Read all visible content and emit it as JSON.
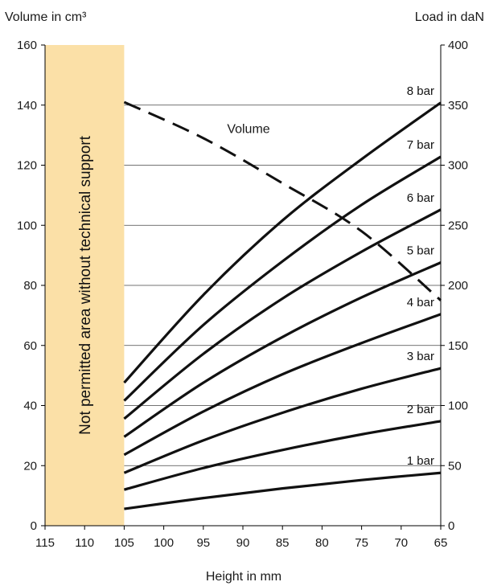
{
  "chart_data": {
    "type": "line",
    "y_left_label": "Volume in cm³",
    "y_right_label": "Load in daN",
    "xlabel": "Height in mm",
    "x_ticks": [
      115,
      110,
      105,
      100,
      95,
      90,
      85,
      80,
      75,
      70,
      65
    ],
    "y_left_ticks": [
      0,
      20,
      40,
      60,
      80,
      100,
      120,
      140,
      160
    ],
    "y_right_ticks": [
      0,
      50,
      100,
      150,
      200,
      250,
      300,
      350,
      400
    ],
    "xlim": [
      115,
      65
    ],
    "ylim_left": [
      0,
      160
    ],
    "ylim_right": [
      0,
      400
    ],
    "grid": "horizontal",
    "shaded_region": {
      "x_range": [
        115,
        105
      ],
      "label": "Not permitted area without technical support",
      "color": "#fbe0a7"
    },
    "volume_series": {
      "name": "Volume",
      "axis": "left",
      "style": "dashed",
      "x": [
        105,
        95,
        85,
        75,
        65
      ],
      "values": [
        141,
        129,
        114,
        98,
        75
      ]
    },
    "load_series": [
      {
        "name": "1 bar",
        "axis": "right",
        "x": [
          105,
          95,
          85,
          75,
          65
        ],
        "values": [
          14,
          23,
          31,
          38,
          44
        ]
      },
      {
        "name": "2 bar",
        "axis": "right",
        "x": [
          105,
          95,
          85,
          75,
          65
        ],
        "values": [
          30,
          48,
          63,
          76,
          87
        ]
      },
      {
        "name": "3 bar",
        "axis": "right",
        "x": [
          105,
          95,
          85,
          75,
          65
        ],
        "values": [
          44,
          71,
          94,
          114,
          131
        ]
      },
      {
        "name": "4 bar",
        "axis": "right",
        "x": [
          105,
          95,
          85,
          75,
          65
        ],
        "values": [
          59,
          95,
          126,
          152,
          176
        ]
      },
      {
        "name": "5 bar",
        "axis": "right",
        "x": [
          105,
          95,
          85,
          75,
          65
        ],
        "values": [
          74,
          119,
          157,
          190,
          219
        ]
      },
      {
        "name": "6 bar",
        "axis": "right",
        "x": [
          105,
          95,
          85,
          75,
          65
        ],
        "values": [
          89,
          143,
          189,
          228,
          263
        ]
      },
      {
        "name": "7 bar",
        "axis": "right",
        "x": [
          105,
          95,
          85,
          75,
          65
        ],
        "values": [
          104,
          167,
          220,
          267,
          307
        ]
      },
      {
        "name": "8 bar",
        "axis": "right",
        "x": [
          105,
          95,
          85,
          75,
          65
        ],
        "values": [
          119,
          192,
          254,
          305,
          352
        ]
      }
    ],
    "colors": {
      "line": "#111111",
      "grid": "#444444",
      "band": "#fbe0a7"
    }
  }
}
